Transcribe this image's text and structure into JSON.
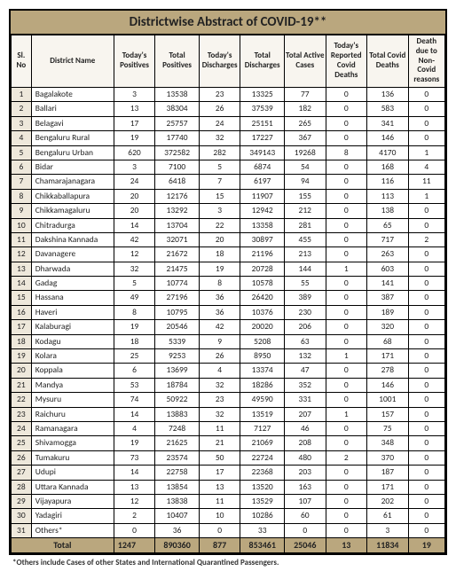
{
  "title": "Districtwise Abstract of COVID-19**",
  "header": [
    "Sl. No",
    "District Name",
    "Today's Positives",
    "Total Positives",
    "Today's Discharges",
    "Total Discharges",
    "Total Active Cases",
    "Today's Reported Covid Deaths",
    "Total Covid Deaths",
    "Death due to Non-Covid reasons"
  ],
  "rows": [
    [
      "1",
      "Bagalakote",
      "3",
      "13538",
      "23",
      "13325",
      "77",
      "0",
      "136",
      "0"
    ],
    [
      "2",
      "Ballari",
      "13",
      "38304",
      "26",
      "37539",
      "182",
      "0",
      "583",
      "0"
    ],
    [
      "3",
      "Belagavi",
      "17",
      "25757",
      "24",
      "25151",
      "265",
      "0",
      "341",
      "0"
    ],
    [
      "4",
      "Bengaluru Rural",
      "19",
      "17740",
      "32",
      "17227",
      "367",
      "0",
      "146",
      "0"
    ],
    [
      "5",
      "Bengaluru Urban",
      "620",
      "372582",
      "282",
      "349143",
      "19268",
      "8",
      "4170",
      "1"
    ],
    [
      "6",
      "Bidar",
      "3",
      "7100",
      "5",
      "6874",
      "54",
      "0",
      "168",
      "4"
    ],
    [
      "7",
      "Chamarajanagara",
      "24",
      "6418",
      "7",
      "6197",
      "94",
      "0",
      "116",
      "11"
    ],
    [
      "8",
      "Chikkaballapura",
      "20",
      "12176",
      "15",
      "11907",
      "155",
      "0",
      "113",
      "1"
    ],
    [
      "9",
      "Chikkamagaluru",
      "20",
      "13292",
      "3",
      "12942",
      "212",
      "0",
      "138",
      "0"
    ],
    [
      "10",
      "Chitradurga",
      "14",
      "13704",
      "22",
      "13358",
      "281",
      "0",
      "65",
      "0"
    ],
    [
      "11",
      "Dakshina Kannada",
      "42",
      "32071",
      "20",
      "30897",
      "455",
      "0",
      "717",
      "2"
    ],
    [
      "12",
      "Davanagere",
      "12",
      "21672",
      "18",
      "21196",
      "213",
      "0",
      "263",
      "0"
    ],
    [
      "13",
      "Dharwada",
      "32",
      "21475",
      "19",
      "20728",
      "144",
      "1",
      "603",
      "0"
    ],
    [
      "14",
      "Gadag",
      "5",
      "10774",
      "8",
      "10578",
      "55",
      "0",
      "141",
      "0"
    ],
    [
      "15",
      "Hassana",
      "49",
      "27196",
      "36",
      "26420",
      "389",
      "0",
      "387",
      "0"
    ],
    [
      "16",
      "Haveri",
      "8",
      "10795",
      "36",
      "10376",
      "230",
      "0",
      "189",
      "0"
    ],
    [
      "17",
      "Kalaburagi",
      "19",
      "20546",
      "42",
      "20020",
      "206",
      "0",
      "320",
      "0"
    ],
    [
      "18",
      "Kodagu",
      "18",
      "5339",
      "9",
      "5208",
      "63",
      "0",
      "68",
      "0"
    ],
    [
      "19",
      "Kolara",
      "25",
      "9253",
      "26",
      "8950",
      "132",
      "1",
      "171",
      "0"
    ],
    [
      "20",
      "Koppala",
      "6",
      "13699",
      "4",
      "13374",
      "47",
      "0",
      "278",
      "0"
    ],
    [
      "21",
      "Mandya",
      "53",
      "18784",
      "32",
      "18286",
      "352",
      "0",
      "146",
      "0"
    ],
    [
      "22",
      "Mysuru",
      "74",
      "50922",
      "23",
      "49590",
      "331",
      "0",
      "1001",
      "0"
    ],
    [
      "23",
      "Raichuru",
      "14",
      "13883",
      "32",
      "13519",
      "207",
      "1",
      "157",
      "0"
    ],
    [
      "24",
      "Ramanagara",
      "4",
      "7248",
      "11",
      "7127",
      "46",
      "0",
      "75",
      "0"
    ],
    [
      "25",
      "Shivamogga",
      "19",
      "21625",
      "21",
      "21069",
      "208",
      "0",
      "348",
      "0"
    ],
    [
      "26",
      "Tumakuru",
      "73",
      "23574",
      "50",
      "22724",
      "480",
      "2",
      "370",
      "0"
    ],
    [
      "27",
      "Udupi",
      "14",
      "22758",
      "17",
      "22368",
      "203",
      "0",
      "187",
      "0"
    ],
    [
      "28",
      "Uttara Kannada",
      "13",
      "13854",
      "13",
      "13520",
      "163",
      "0",
      "171",
      "0"
    ],
    [
      "29",
      "Vijayapura",
      "12",
      "13838",
      "11",
      "13529",
      "107",
      "0",
      "202",
      "0"
    ],
    [
      "30",
      "Yadagiri",
      "2",
      "10407",
      "10",
      "10286",
      "60",
      "0",
      "61",
      "0"
    ],
    [
      "31",
      "Others*",
      "0",
      "36",
      "0",
      "33",
      "0",
      "0",
      "3",
      "0"
    ]
  ],
  "total": [
    "Total",
    "1247",
    "890360",
    "877",
    "853461",
    "25046",
    "13",
    "11834",
    "19"
  ],
  "footnote": "*Others include Cases of other States and International Quarantined Passengers."
}
